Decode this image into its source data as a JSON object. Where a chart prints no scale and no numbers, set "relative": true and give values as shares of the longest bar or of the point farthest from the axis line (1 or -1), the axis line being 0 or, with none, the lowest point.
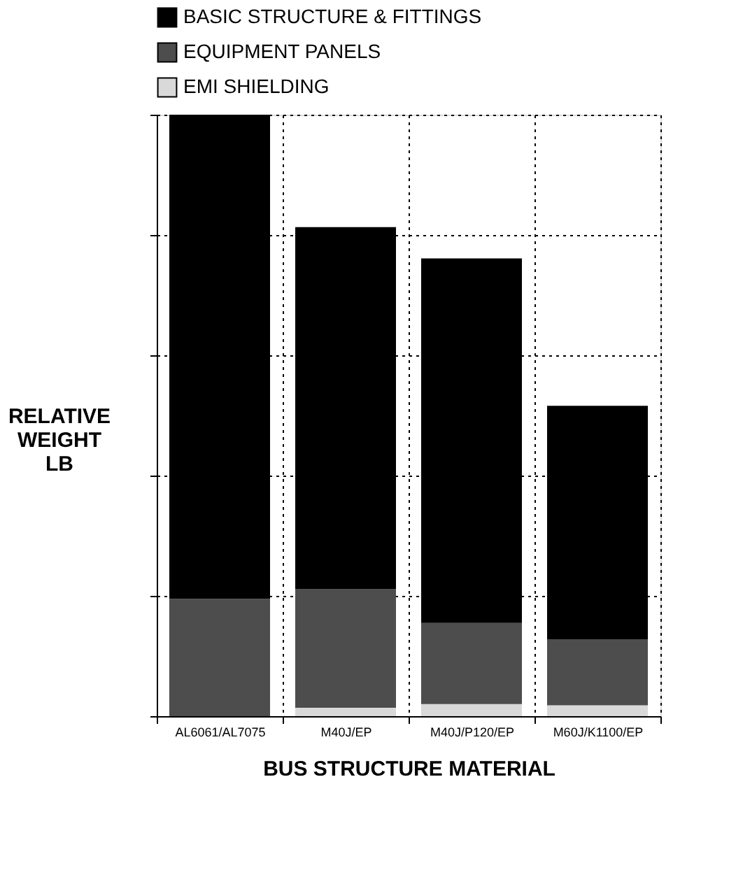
{
  "chart_data": {
    "type": "bar",
    "stacked": true,
    "relative": true,
    "xlabel": "BUS STRUCTURE MATERIAL",
    "ylabel": "RELATIVE WEIGHT LB",
    "categories": [
      "AL6061/AL7075",
      "M40J/EP",
      "M40J/P120/EP",
      "M60J/K1100/EP"
    ],
    "series": [
      {
        "name": "EMI SHIELDING",
        "color": "#d9d9d9",
        "values": [
          0,
          0.014,
          0.02,
          0.018
        ]
      },
      {
        "name": "EQUIPMENT PANELS",
        "color": "#4d4d4d",
        "values": [
          0.195,
          0.197,
          0.135,
          0.11
        ]
      },
      {
        "name": "BASIC STRUCTURE & FITTINGS",
        "color": "#000000",
        "values": [
          0.805,
          0.602,
          0.606,
          0.388
        ]
      }
    ],
    "grid": true,
    "legend": "top"
  }
}
